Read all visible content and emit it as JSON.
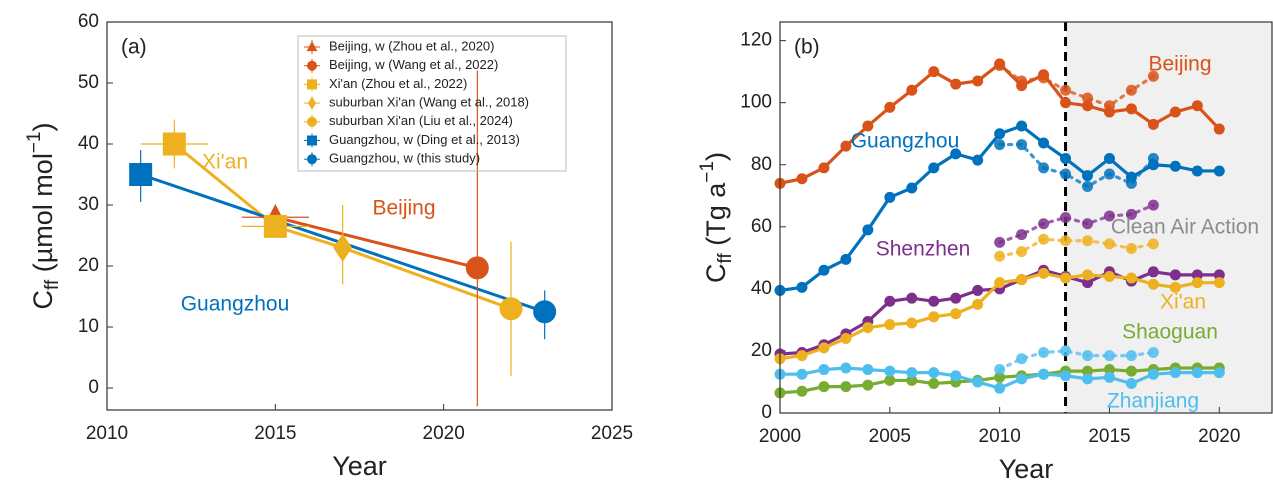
{
  "chart_data": [
    {
      "type": "scatter",
      "panel_label": "(a)",
      "x_label": "Year",
      "y_label": {
        "main": "C",
        "sub": "ff",
        "unit": " (µmol mol",
        "sup": "−1",
        "close": ")"
      },
      "xlim": [
        2010,
        2025
      ],
      "ylim": [
        -3.6,
        60
      ],
      "xticks": [
        2010,
        2015,
        2020,
        2025
      ],
      "yticks": [
        0,
        10,
        20,
        30,
        40,
        50,
        60
      ],
      "series": [
        {
          "name": "Beijing, w (Zhou et al., 2020)",
          "color": "#D95319",
          "marker": "triangle",
          "x": [
            2015
          ],
          "values": [
            28
          ],
          "x_low": [
            2014
          ],
          "x_high": [
            2016
          ]
        },
        {
          "name": "Beijing, w (Wang et al., 2022)",
          "color": "#D95319",
          "marker": "circle",
          "x": [
            2021
          ],
          "values": [
            19.7
          ],
          "y_low": [
            -3
          ],
          "y_high": [
            52
          ]
        },
        {
          "name": "Xi'an (Zhou et al., 2022)",
          "color": "#EDB120",
          "marker": "square",
          "x": [
            2012,
            2015
          ],
          "values": [
            40,
            26.5
          ],
          "x_low": [
            2011,
            2014
          ],
          "x_high": [
            2013,
            2016
          ],
          "y_low": [
            36,
            25.5
          ],
          "y_high": [
            44,
            28
          ]
        },
        {
          "name": "suburban Xi'an (Wang et al., 2018)",
          "color": "#EDB120",
          "marker": "diamond",
          "x": [
            2017
          ],
          "values": [
            23
          ],
          "y_low": [
            17
          ],
          "y_high": [
            30
          ]
        },
        {
          "name": "suburban Xi'an (Liu et al., 2024)",
          "color": "#EDB120",
          "marker": "circle",
          "x": [
            2022
          ],
          "values": [
            13
          ],
          "y_low": [
            2
          ],
          "y_high": [
            24
          ]
        },
        {
          "name": "Guangzhou, w (Ding et al., 2013)",
          "color": "#0072BD",
          "marker": "square",
          "x": [
            2011
          ],
          "values": [
            35
          ],
          "y_low": [
            30.5
          ],
          "y_high": [
            39
          ]
        },
        {
          "name": "Guangzhou, w (this study)",
          "color": "#0072BD",
          "marker": "circle",
          "x": [
            2023
          ],
          "values": [
            12.5
          ],
          "y_low": [
            8
          ],
          "y_high": [
            16
          ]
        }
      ],
      "fit_lines": [
        {
          "color": "#D95319",
          "x": [
            2015,
            2021
          ],
          "values": [
            28,
            19.7
          ]
        },
        {
          "color": "#EDB120",
          "x": [
            2012,
            2015,
            2017,
            2022
          ],
          "values": [
            40,
            26.5,
            23,
            13
          ]
        },
        {
          "color": "#0072BD",
          "x": [
            2011,
            2023
          ],
          "values": [
            35,
            12.5
          ]
        }
      ],
      "annotations": [
        {
          "text": "Xi'an",
          "color": "#EDB120"
        },
        {
          "text": "Beijing",
          "color": "#D95319"
        },
        {
          "text": "Guangzhou",
          "color": "#0072BD"
        }
      ]
    },
    {
      "type": "line",
      "panel_label": "(b)",
      "x_label": "Year",
      "y_label": {
        "main": "C",
        "sub": "ff",
        "unit": " (Tg a",
        "sup": "−1",
        "close": ")"
      },
      "xlim": [
        2000,
        2022.4
      ],
      "ylim": [
        0,
        126
      ],
      "xticks": [
        2000,
        2005,
        2010,
        2015,
        2020
      ],
      "yticks": [
        0,
        20,
        40,
        60,
        80,
        100,
        120
      ],
      "shade_from": 2013,
      "x": [
        2000,
        2001,
        2002,
        2003,
        2004,
        2005,
        2006,
        2007,
        2008,
        2009,
        2010,
        2011,
        2012,
        2013,
        2014,
        2015,
        2016,
        2017,
        2018,
        2019,
        2020
      ],
      "series": [
        {
          "name": "Beijing",
          "color": "#D95319",
          "values": [
            74,
            75.5,
            79,
            86,
            92.5,
            98.5,
            104,
            110,
            106,
            107,
            112.5,
            105.5,
            109,
            100,
            99,
            97,
            98,
            93,
            97,
            99,
            91.5
          ]
        },
        {
          "name": "Guangzhou",
          "color": "#0072BD",
          "values": [
            39.5,
            40.5,
            46,
            49.5,
            59,
            69.5,
            72.5,
            79,
            83.5,
            81.5,
            90,
            92.5,
            87,
            82,
            76.5,
            82,
            76,
            80,
            79.5,
            78,
            78
          ]
        },
        {
          "name": "Shenzhen",
          "color": "#7E2F8E",
          "values": [
            19,
            19.5,
            22,
            25.5,
            29.5,
            36,
            37,
            36,
            37,
            39.5,
            40,
            43,
            46,
            44,
            42,
            45.5,
            42.5,
            45.5,
            44.5,
            44.5,
            44.5
          ]
        },
        {
          "name": "Xi'an",
          "color": "#EDB120",
          "values": [
            17.5,
            18.5,
            21,
            24,
            27.5,
            28.5,
            29,
            31,
            32,
            35,
            42,
            43,
            45,
            43.5,
            44.5,
            44,
            43.5,
            41.5,
            40.5,
            42,
            42
          ]
        },
        {
          "name": "Shaoguan",
          "color": "#77AC30",
          "values": [
            6.5,
            7,
            8.5,
            8.5,
            9,
            10.5,
            10.5,
            9.5,
            10,
            10.5,
            11.5,
            12,
            12.5,
            13.5,
            13.5,
            14,
            13.5,
            14,
            14.5,
            14.5,
            14.5
          ]
        },
        {
          "name": "Zhanjiang",
          "color": "#4DBEEE",
          "values": [
            12.5,
            12.5,
            14,
            14.5,
            14,
            13.5,
            13,
            13,
            12,
            10,
            8,
            11,
            12.5,
            12,
            11,
            11.5,
            9.5,
            12.5,
            13,
            13,
            13
          ]
        },
        {
          "color": "#D95319",
          "dashed": true,
          "values": [
            null,
            null,
            null,
            null,
            null,
            null,
            null,
            null,
            null,
            null,
            112,
            107,
            108,
            104,
            101.5,
            99,
            104,
            108.5,
            null,
            null,
            null
          ]
        },
        {
          "color": "#0072BD",
          "dashed": true,
          "values": [
            null,
            null,
            null,
            null,
            null,
            null,
            null,
            null,
            null,
            null,
            86.5,
            86.5,
            79,
            77,
            73,
            77,
            74,
            82,
            null,
            null,
            null
          ]
        },
        {
          "color": "#7E2F8E",
          "dashed": true,
          "values": [
            null,
            null,
            null,
            null,
            null,
            null,
            null,
            null,
            null,
            null,
            55,
            57.5,
            61,
            63,
            61,
            63.5,
            64,
            67,
            null,
            null,
            null
          ]
        },
        {
          "color": "#EDB120",
          "dashed": true,
          "values": [
            null,
            null,
            null,
            null,
            null,
            null,
            null,
            null,
            null,
            null,
            50.5,
            52,
            56,
            55.5,
            55.5,
            54.5,
            53,
            54.5,
            null,
            null,
            null
          ]
        },
        {
          "color": "#4DBEEE",
          "dashed": true,
          "values": [
            null,
            null,
            null,
            null,
            null,
            null,
            null,
            null,
            null,
            null,
            14,
            17.5,
            19.5,
            20,
            18.5,
            18.5,
            18.5,
            19.5,
            null,
            null,
            null
          ]
        }
      ],
      "annotations": [
        {
          "text": "Clean Air Action",
          "color": "#8c8c8c"
        }
      ]
    }
  ]
}
